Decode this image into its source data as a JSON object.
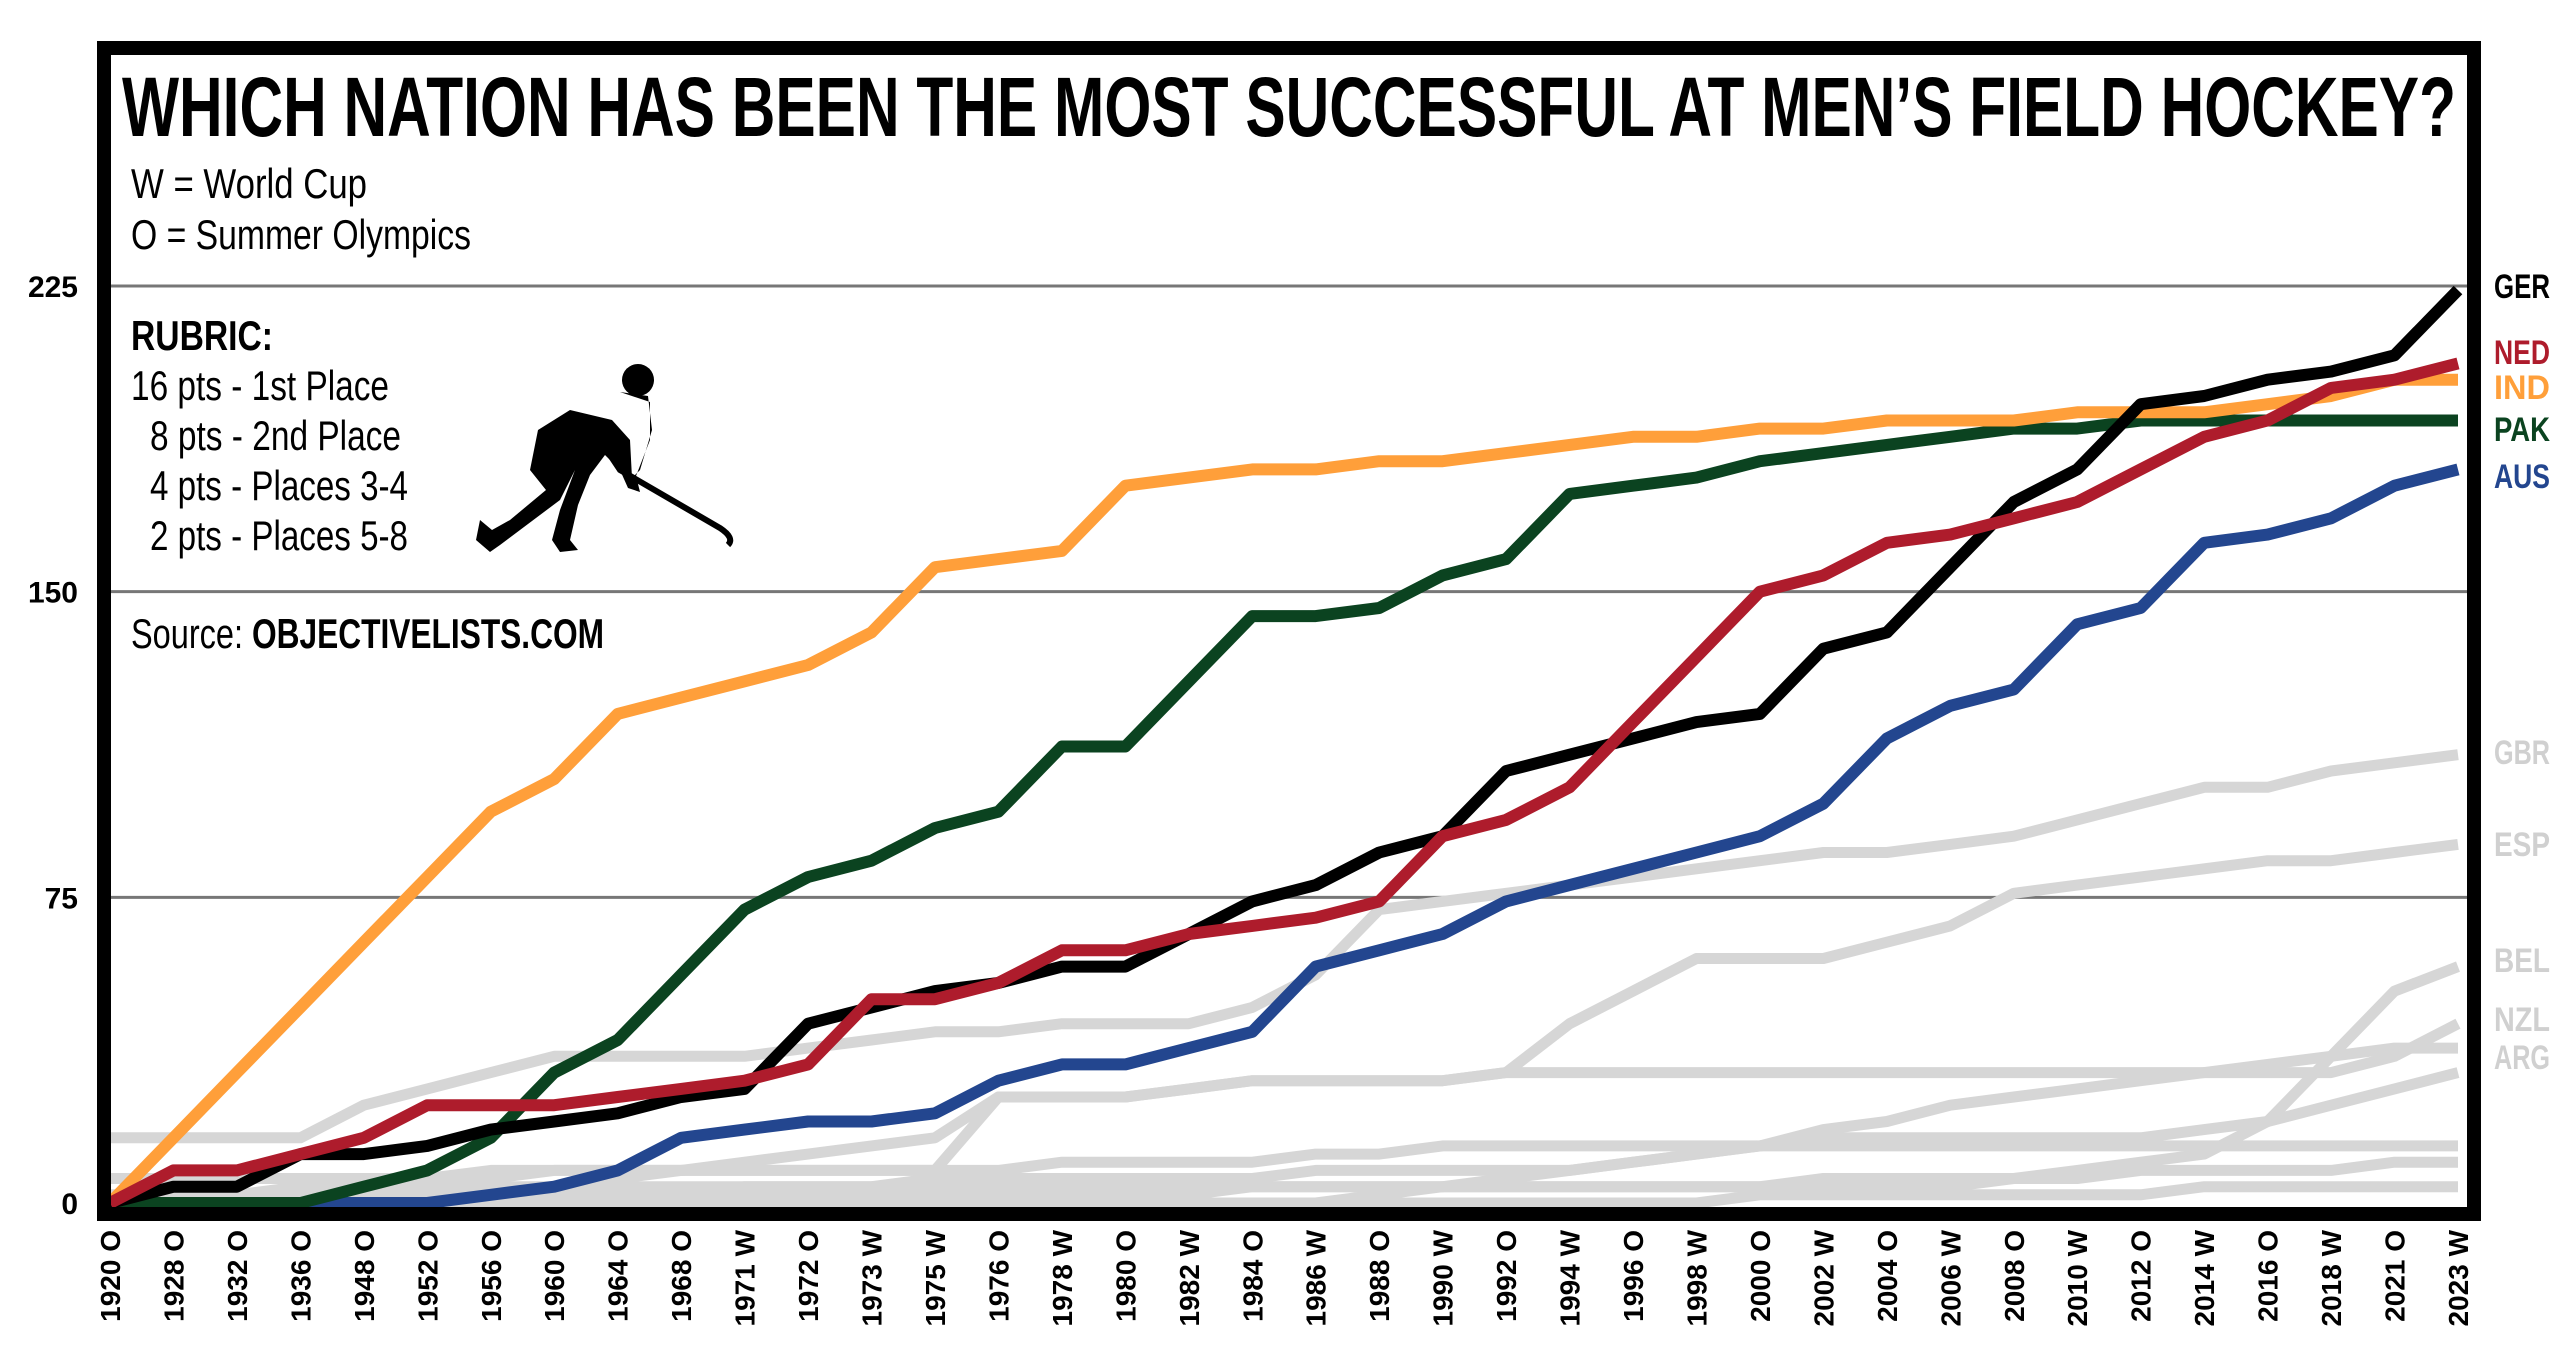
{
  "chart_data": {
    "type": "line",
    "title": "WHICH NATION HAS BEEN THE MOST SUCCESSFUL AT MEN’S FIELD HOCKEY?",
    "legend_notes": [
      "W = World Cup",
      "O = Summer Olympics"
    ],
    "rubric": {
      "heading": "RUBRIC:",
      "lines": [
        "16 pts - 1st Place",
        "8 pts - 2nd Place",
        "4 pts - Places 3-4",
        "2 pts - Places 5-8"
      ]
    },
    "source_label": "Source:",
    "source": "OBJECTIVELISTS.COM",
    "xlabel": "",
    "ylabel": "",
    "ylim": [
      0,
      225
    ],
    "yticks": [
      "0",
      "75",
      "150",
      "225"
    ],
    "grid": "horizontal",
    "legend_placement": "right (labels at line ends)",
    "categories": [
      "1920 O",
      "1928 O",
      "1932 O",
      "1936 O",
      "1948 O",
      "1952 O",
      "1956 O",
      "1960 O",
      "1964 O",
      "1968 O",
      "1971 W",
      "1972 O",
      "1973 W",
      "1975 W",
      "1976 O",
      "1978 W",
      "1980 O",
      "1982 W",
      "1984 O",
      "1986 W",
      "1988 O",
      "1990 W",
      "1992 O",
      "1994 W",
      "1996 O",
      "1998 W",
      "2000 O",
      "2002 W",
      "2004 O",
      "2006 W",
      "2008 O",
      "2010 W",
      "2012 O",
      "2014 W",
      "2016 O",
      "2018 W",
      "2021 O",
      "2023 W"
    ],
    "series": [
      {
        "name": "GER",
        "color": "#000000",
        "highlight": true,
        "values": [
          0,
          4,
          4,
          12,
          12,
          14,
          18,
          20,
          22,
          26,
          28,
          44,
          48,
          52,
          54,
          58,
          58,
          66,
          74,
          78,
          86,
          90,
          106,
          110,
          114,
          118,
          120,
          136,
          140,
          156,
          172,
          180,
          196,
          198,
          202,
          204,
          208,
          224
        ]
      },
      {
        "name": "NED",
        "color": "#ae1c2c",
        "highlight": true,
        "values": [
          0,
          8,
          8,
          12,
          16,
          24,
          24,
          24,
          26,
          28,
          30,
          34,
          50,
          50,
          54,
          62,
          62,
          66,
          68,
          70,
          74,
          90,
          94,
          102,
          118,
          134,
          150,
          154,
          162,
          164,
          168,
          172,
          180,
          188,
          192,
          200,
          202,
          206
        ]
      },
      {
        "name": "IND",
        "color": "#ff9f3a",
        "highlight": true,
        "values": [
          0,
          16,
          32,
          48,
          64,
          80,
          96,
          104,
          120,
          124,
          128,
          132,
          140,
          156,
          158,
          160,
          176,
          178,
          180,
          180,
          182,
          182,
          184,
          186,
          188,
          188,
          190,
          190,
          192,
          192,
          192,
          194,
          194,
          194,
          196,
          198,
          202,
          202
        ]
      },
      {
        "name": "PAK",
        "color": "#0b4320",
        "highlight": true,
        "values": [
          0,
          0,
          0,
          0,
          4,
          8,
          16,
          32,
          40,
          56,
          72,
          80,
          84,
          92,
          96,
          112,
          112,
          128,
          144,
          144,
          146,
          154,
          158,
          174,
          176,
          178,
          182,
          184,
          186,
          188,
          190,
          190,
          192,
          192,
          192,
          192,
          192,
          192
        ]
      },
      {
        "name": "AUS",
        "color": "#23468f",
        "highlight": true,
        "values": [
          0,
          0,
          0,
          0,
          0,
          0,
          2,
          4,
          8,
          16,
          18,
          20,
          20,
          22,
          30,
          34,
          34,
          38,
          42,
          58,
          62,
          66,
          74,
          78,
          82,
          86,
          90,
          98,
          114,
          122,
          126,
          142,
          146,
          162,
          164,
          168,
          176,
          180
        ]
      },
      {
        "name": "GBR",
        "color": "#d6d6d6",
        "highlight": false,
        "values": [
          16,
          16,
          16,
          16,
          24,
          28,
          32,
          36,
          36,
          36,
          36,
          38,
          40,
          42,
          42,
          44,
          44,
          44,
          48,
          56,
          72,
          74,
          76,
          78,
          80,
          82,
          84,
          86,
          86,
          88,
          90,
          94,
          98,
          102,
          102,
          106,
          108,
          110
        ]
      },
      {
        "name": "ESP",
        "color": "#d6d6d6",
        "highlight": false,
        "values": [
          0,
          2,
          2,
          2,
          4,
          6,
          6,
          8,
          8,
          8,
          8,
          8,
          8,
          8,
          26,
          26,
          26,
          28,
          30,
          30,
          30,
          30,
          32,
          44,
          52,
          60,
          60,
          60,
          64,
          68,
          76,
          78,
          80,
          82,
          84,
          84,
          86,
          88
        ]
      },
      {
        "name": "BEL",
        "color": "#d6d6d6",
        "highlight": false,
        "values": [
          2,
          2,
          2,
          4,
          4,
          4,
          4,
          4,
          4,
          4,
          4,
          4,
          4,
          4,
          4,
          4,
          4,
          4,
          4,
          4,
          4,
          4,
          4,
          4,
          4,
          4,
          4,
          4,
          4,
          4,
          6,
          8,
          10,
          12,
          20,
          36,
          52,
          58
        ]
      },
      {
        "name": "NZL",
        "color": "#d6d6d6",
        "highlight": false,
        "values": [
          0,
          0,
          0,
          0,
          0,
          0,
          2,
          4,
          6,
          8,
          10,
          12,
          14,
          16,
          26,
          26,
          26,
          28,
          30,
          30,
          30,
          30,
          32,
          32,
          32,
          32,
          32,
          32,
          32,
          32,
          32,
          32,
          32,
          32,
          32,
          32,
          36,
          44
        ]
      },
      {
        "name": "ARG",
        "color": "#d6d6d6",
        "highlight": false,
        "values": [
          0,
          0,
          0,
          0,
          2,
          2,
          2,
          2,
          2,
          2,
          4,
          4,
          4,
          6,
          6,
          6,
          6,
          6,
          6,
          8,
          8,
          8,
          8,
          8,
          10,
          12,
          14,
          18,
          20,
          24,
          26,
          28,
          30,
          32,
          34,
          36,
          38,
          38
        ]
      },
      {
        "name": "",
        "color": "#d6d6d6",
        "highlight": false,
        "values": [
          0,
          0,
          0,
          0,
          0,
          0,
          0,
          0,
          0,
          0,
          0,
          0,
          0,
          0,
          0,
          0,
          0,
          0,
          0,
          0,
          2,
          4,
          6,
          8,
          10,
          12,
          14,
          16,
          16,
          16,
          16,
          16,
          16,
          18,
          20,
          24,
          28,
          32
        ]
      },
      {
        "name": "",
        "color": "#d6d6d6",
        "highlight": false,
        "values": [
          6,
          6,
          6,
          6,
          6,
          6,
          8,
          8,
          8,
          8,
          8,
          8,
          8,
          8,
          8,
          10,
          10,
          10,
          10,
          12,
          12,
          14,
          14,
          14,
          14,
          14,
          14,
          14,
          14,
          14,
          14,
          14,
          14,
          14,
          14,
          14,
          14,
          14
        ]
      },
      {
        "name": "",
        "color": "#d6d6d6",
        "highlight": false,
        "values": [
          0,
          0,
          0,
          0,
          0,
          0,
          0,
          0,
          0,
          2,
          2,
          2,
          2,
          2,
          2,
          2,
          2,
          2,
          4,
          4,
          4,
          4,
          4,
          4,
          4,
          4,
          4,
          6,
          6,
          6,
          6,
          6,
          8,
          8,
          8,
          8,
          10,
          10
        ]
      },
      {
        "name": "",
        "color": "#d6d6d6",
        "highlight": false,
        "values": [
          0,
          0,
          0,
          0,
          0,
          0,
          0,
          0,
          0,
          0,
          0,
          0,
          0,
          0,
          0,
          0,
          0,
          0,
          0,
          0,
          0,
          0,
          0,
          0,
          0,
          0,
          2,
          2,
          2,
          2,
          2,
          2,
          2,
          4,
          4,
          4,
          4,
          4
        ]
      }
    ]
  }
}
